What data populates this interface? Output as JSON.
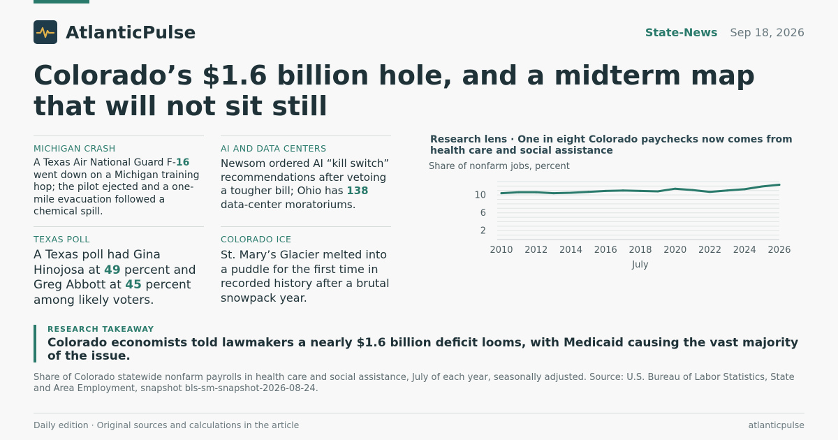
{
  "brand": {
    "name": "AtlanticPulse",
    "logo_icon": "pulse-icon"
  },
  "header": {
    "section": "State-News",
    "date": "Sep 18, 2026"
  },
  "headline": "Colorado’s $1.6 billion hole, and a midterm map that will not sit still",
  "briefs": [
    {
      "kicker": "MICHIGAN CRASH",
      "parts": [
        "A Texas Air National Guard F-",
        "16",
        " went down on a Michigan training hop; the pilot ejected and a one-mile evacuation followed a chemical spill."
      ]
    },
    {
      "kicker": "AI AND DATA CENTERS",
      "parts": [
        "Newsom ordered AI “kill switch” recommendations after vetoing a tougher bill; Ohio has ",
        "138",
        " data-center moratoriums."
      ]
    },
    {
      "kicker": "TEXAS POLL",
      "parts": [
        "A Texas poll had Gina Hinojosa at ",
        "49",
        " percent and Greg Abbott at ",
        "45",
        " percent among likely voters."
      ]
    },
    {
      "kicker": "COLORADO ICE",
      "parts": [
        "St. Mary’s Glacier melted into a puddle for the first time in recorded history after a brutal snowpack year."
      ]
    }
  ],
  "chart_data": {
    "type": "line",
    "title": "Research lens · One in eight Colorado paychecks now comes from health care and social assistance",
    "subtitle": "Share of nonfarm jobs, percent",
    "xlabel": "July",
    "ylabel": "",
    "x": [
      2010,
      2011,
      2012,
      2013,
      2014,
      2015,
      2016,
      2017,
      2018,
      2019,
      2020,
      2021,
      2022,
      2023,
      2024,
      2025,
      2026
    ],
    "series": [
      {
        "values": [
          10.4,
          10.6,
          10.6,
          10.4,
          10.5,
          10.7,
          10.9,
          11.0,
          10.9,
          10.8,
          11.4,
          11.1,
          10.7,
          11.0,
          11.3,
          11.9,
          12.3
        ]
      }
    ],
    "xlim": [
      2010,
      2026
    ],
    "ylim": [
      0,
      13
    ],
    "x_ticks": [
      "2010",
      "2012",
      "2014",
      "2016",
      "2018",
      "2020",
      "2022",
      "2024",
      "2026"
    ],
    "y_ticks": [
      "2",
      "6",
      "10"
    ],
    "grid": true,
    "legend": "none",
    "line_color": "#2a7a6c"
  },
  "takeaway": {
    "kicker": "RESEARCH TAKEAWAY",
    "text": "Colorado economists told lawmakers a nearly $1.6 billion deficit looms, with Medicaid causing the vast majority of the issue."
  },
  "source": "Share of Colorado statewide nonfarm payrolls in health care and social assistance, July of each year, seasonally adjusted. Source: U.S. Bureau of Labor Statistics, State and Area Employment, snapshot bls-sm-snapshot-2026-08-24.",
  "footer": {
    "left": "Daily edition · Original sources and calculations in the article",
    "right": "atlanticpulse"
  },
  "colors": {
    "accent": "#2a7a6c",
    "ink": "#1f3238",
    "logo_bg": "#1f3a48",
    "logo_line": "#e0b04a"
  }
}
